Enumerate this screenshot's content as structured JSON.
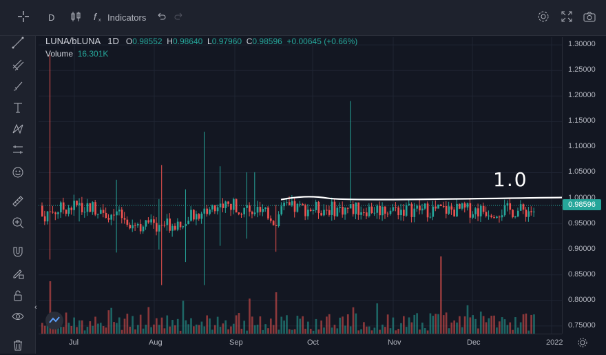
{
  "toolbar": {
    "interval": "D",
    "indicators_label": "Indicators"
  },
  "legend": {
    "symbol": "LUNA/bLUNA",
    "interval": "1D",
    "o_key": "O",
    "open": "0.98552",
    "h_key": "H",
    "high": "0.98640",
    "l_key": "L",
    "low": "0.97960",
    "c_key": "C",
    "close": "0.98596",
    "change": "+0.00645 (+0.66%)",
    "volume_key": "Volume",
    "volume": "16.301K"
  },
  "annotation_text": "1.0",
  "colors": {
    "background": "#131722",
    "up": "#26a69a",
    "down": "#ef5350",
    "grid": "#1f2533",
    "annotation": "#ffffff"
  },
  "chart_data": {
    "type": "candlestick",
    "price_ticks": [
      "1.30000",
      "1.25000",
      "1.20000",
      "1.15000",
      "1.10000",
      "1.05000",
      "1.00000",
      "0.95000",
      "0.90000",
      "0.85000",
      "0.80000",
      "0.75000"
    ],
    "time_ticks": [
      "Jul",
      "Aug",
      "Sep",
      "Oct",
      "Nov",
      "Dec",
      "2022"
    ],
    "ylim": [
      0.735,
      1.315
    ],
    "last_price": 0.98596,
    "last_price_label": "0.98596",
    "annotation_level": 1.0,
    "grid": true,
    "notable_spikes": [
      {
        "date": "Jun 23",
        "high": 1.28,
        "low": 0.88
      },
      {
        "date": "Aug 21",
        "high": 1.13,
        "low": 0.83
      },
      {
        "date": "Oct 18",
        "high": 1.19,
        "low": 0.99
      },
      {
        "date": "Aug 4",
        "high": 1.065,
        "low": 0.83
      }
    ]
  }
}
